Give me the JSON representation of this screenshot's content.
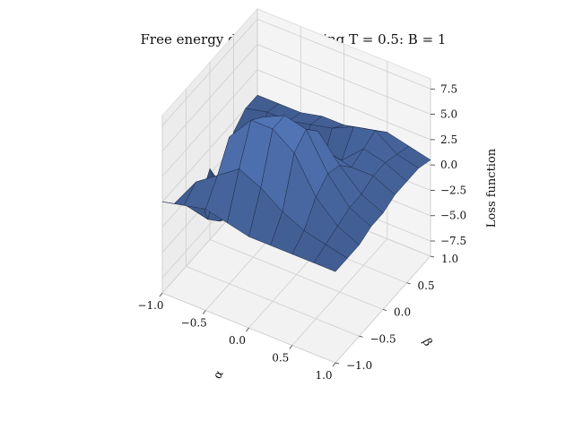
{
  "chart_data": {
    "type": "surface3d",
    "title": "Free energy during annealing T = 0.5:  B = 1",
    "xlabel": "α",
    "ylabel": "β",
    "zlabel": "Loss function",
    "xlim": [
      -1.0,
      1.0
    ],
    "ylim": [
      -1.0,
      1.0
    ],
    "zlim": [
      -9.0,
      8.5
    ],
    "xticks": [
      -1.0,
      -0.5,
      0.0,
      0.5,
      1.0
    ],
    "xtick_labels": [
      "−1.0",
      "−0.5",
      "0.0",
      "0.5",
      "1.0"
    ],
    "yticks": [
      -1.0,
      -0.5,
      0.0,
      0.5,
      1.0
    ],
    "ytick_labels": [
      "−1.0",
      "−0.5",
      "0.0",
      "0.5",
      "1.0"
    ],
    "zticks": [
      -7.5,
      -5.0,
      -2.5,
      0.0,
      2.5,
      5.0,
      7.5
    ],
    "ztick_labels": [
      "−7.5",
      "−5.0",
      "−2.5",
      "0.0",
      "2.5",
      "5.0",
      "7.5"
    ],
    "grid": true,
    "surface_color": "#4a6aa5",
    "edge_color": "#1c2b48",
    "alpha_samples": [
      -1.0,
      -0.75,
      -0.5,
      -0.25,
      0.0,
      0.25,
      0.5,
      0.75,
      1.0
    ],
    "beta_samples": [
      -1.0,
      -0.75,
      -0.5,
      -0.25,
      0.0,
      0.25,
      0.5,
      0.75,
      1.0
    ],
    "loss_values": [
      [
        0.0,
        -1.5,
        -3.0,
        -4.5,
        -2.0,
        -5.0,
        -1.0,
        0.0,
        0.0
      ],
      [
        0.5,
        1.5,
        -3.5,
        -5.0,
        -6.0,
        -4.0,
        -2.0,
        0.5,
        0.0
      ],
      [
        1.0,
        3.0,
        5.5,
        0.5,
        -5.5,
        -7.0,
        -3.0,
        0.5,
        0.0
      ],
      [
        0.5,
        4.5,
        8.0,
        7.0,
        2.0,
        -3.5,
        -2.5,
        1.0,
        0.5
      ],
      [
        0.0,
        3.5,
        8.0,
        8.0,
        5.5,
        0.0,
        -1.5,
        1.5,
        0.5
      ],
      [
        0.0,
        2.0,
        6.5,
        7.5,
        6.0,
        2.5,
        0.5,
        2.5,
        1.0
      ],
      [
        0.0,
        1.0,
        3.0,
        4.0,
        3.5,
        2.0,
        2.5,
        3.0,
        1.5
      ],
      [
        0.0,
        0.5,
        1.0,
        1.5,
        1.5,
        2.0,
        2.0,
        1.5,
        1.0
      ],
      [
        0.0,
        0.0,
        0.0,
        0.5,
        0.5,
        1.0,
        1.0,
        1.0,
        0.5
      ]
    ]
  }
}
